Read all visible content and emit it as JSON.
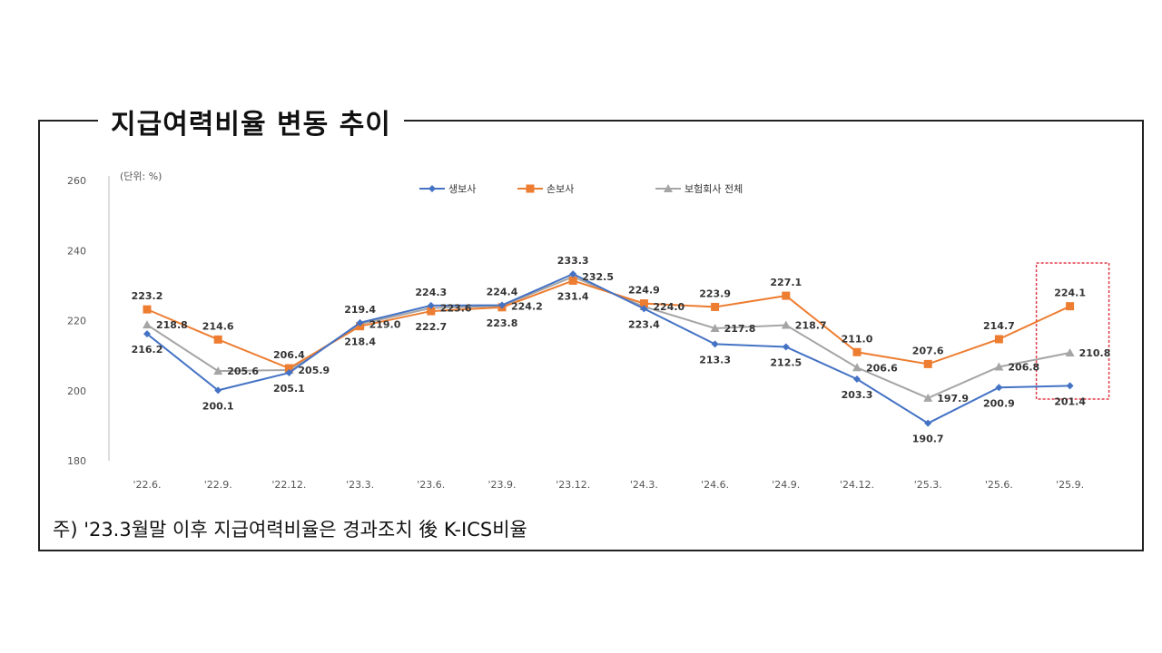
{
  "title": "지급여력비율 변동 추이",
  "footnote": "주) '23.3월말 이후 지급여력비율은 경과조치 後 K-ICS비율",
  "chart_data": {
    "type": "line",
    "title": "지급여력비율 변동 추이",
    "unit": "(단위: %)",
    "categories": [
      "'22.6.",
      "'22.9.",
      "'22.12.",
      "'23.3.",
      "'23.6.",
      "'23.9.",
      "'23.12.",
      "'24.3.",
      "'24.6.",
      "'24.9.",
      "'24.12.",
      "'25.3.",
      "'25.6.",
      "'25.9."
    ],
    "ylim": [
      180,
      260
    ],
    "yticks": [
      180,
      200,
      220,
      240,
      260
    ],
    "grid": false,
    "legend": "top",
    "series": [
      {
        "name": "생보사",
        "color": "#4472C4",
        "marker": "diamond",
        "values": [
          216.2,
          200.1,
          205.1,
          219.4,
          224.3,
          224.4,
          233.3,
          223.4,
          213.3,
          212.5,
          203.3,
          190.7,
          200.9,
          201.4
        ]
      },
      {
        "name": "손보사",
        "color": "#ED7D31",
        "marker": "square",
        "values": [
          223.2,
          214.6,
          206.4,
          218.4,
          222.7,
          223.8,
          231.4,
          224.9,
          223.9,
          227.1,
          211.0,
          207.6,
          214.7,
          224.1
        ]
      },
      {
        "name": "보험회사 전체",
        "color": "#A5A5A5",
        "marker": "triangle",
        "values": [
          218.8,
          205.6,
          205.9,
          219.0,
          223.6,
          224.2,
          232.5,
          224.0,
          217.8,
          218.7,
          206.6,
          197.9,
          206.8,
          210.8
        ]
      }
    ],
    "highlight": {
      "category": "'25.9.",
      "color": "#E03C4A"
    }
  }
}
